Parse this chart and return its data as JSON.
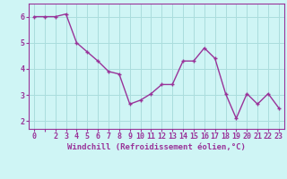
{
  "x": [
    0,
    1,
    2,
    3,
    4,
    5,
    6,
    7,
    8,
    9,
    10,
    11,
    12,
    13,
    14,
    15,
    16,
    17,
    18,
    19,
    20,
    21,
    22,
    23
  ],
  "y": [
    6.0,
    6.0,
    6.0,
    6.1,
    5.0,
    4.65,
    4.3,
    3.9,
    3.8,
    2.65,
    2.8,
    3.05,
    3.4,
    3.4,
    4.3,
    4.3,
    4.8,
    4.4,
    3.05,
    2.1,
    3.05,
    2.65,
    3.05,
    2.5
  ],
  "line_color": "#993399",
  "marker": "P",
  "marker_size": 2.5,
  "xlabel": "Windchill (Refroidissement éolien,°C)",
  "xlabel_fontsize": 6.5,
  "ylabel_ticks": [
    2,
    3,
    4,
    5,
    6
  ],
  "xtick_labels": [
    "0",
    "",
    "2",
    "3",
    "4",
    "5",
    "6",
    "7",
    "8",
    "9",
    "10",
    "11",
    "12",
    "13",
    "14",
    "15",
    "16",
    "17",
    "18",
    "19",
    "20",
    "21",
    "22",
    "23"
  ],
  "ylim": [
    1.7,
    6.5
  ],
  "xlim": [
    -0.5,
    23.5
  ],
  "background_color": "#cff5f5",
  "grid_color": "#aadddd",
  "tick_fontsize": 6.0,
  "line_width": 1.0
}
